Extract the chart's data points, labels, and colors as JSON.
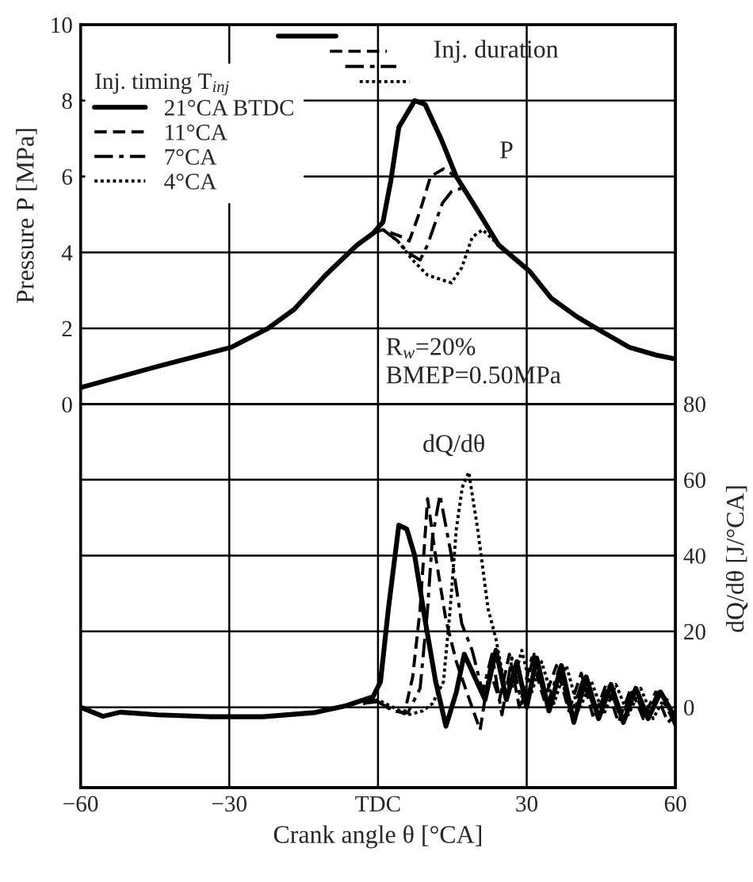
{
  "chart_data": {
    "type": "line",
    "xlabel": "Crank angle θ [°CA]",
    "ylabel": "Pressure P [MPa]",
    "y2label": "dQ/dθ [J/°CA]",
    "legend_title": "Inj. timing T$_{inj}$",
    "xlim": [
      -60,
      60
    ],
    "xticks": [
      {
        "value": -60,
        "label": "−60"
      },
      {
        "value": -30,
        "label": "−30"
      },
      {
        "value": 0,
        "label": "TDC"
      },
      30,
      60
    ],
    "ylim": [
      -10.1,
      10
    ],
    "yticks": [
      0,
      2,
      4,
      6,
      8,
      10
    ],
    "y2lim": [
      -21.2,
      180
    ],
    "y2ticks": [
      0,
      20,
      40,
      60,
      80
    ],
    "grid": true,
    "legend": "top left",
    "series": [
      {
        "name": "21°CA BTDC",
        "color": "#000000",
        "line_style": "solid",
        "x": [
          -59.7,
          -44.4,
          -29.6,
          -22.2,
          -16.9,
          -10.6,
          -4.2,
          -1.0,
          1.0,
          2.6,
          4.2,
          7.4,
          9.5,
          12.7,
          15.8,
          20.1,
          24.3,
          30.6,
          34.9,
          40.2,
          45.4,
          50.7,
          56.0,
          59.7
        ],
        "values": [
          0.45,
          1.0,
          1.5,
          2.0,
          2.5,
          3.4,
          4.2,
          4.5,
          4.8,
          5.9,
          7.3,
          8.0,
          7.9,
          7.0,
          6.0,
          5.1,
          4.2,
          3.5,
          2.8,
          2.3,
          1.9,
          1.5,
          1.3,
          1.2
        ]
      },
      {
        "name": "11°CA",
        "color": "#000000",
        "line_style": "dashed",
        "x": [
          -1.0,
          1.0,
          3.0,
          5.0,
          6.3,
          8.5,
          10.6,
          13.2,
          15.8
        ],
        "values": [
          4.5,
          4.6,
          4.5,
          4.4,
          4.3,
          5.1,
          6.0,
          6.2,
          6.0
        ]
      },
      {
        "name": "7°CA",
        "color": "#000000",
        "line_style": "dashdot",
        "x": [
          1.0,
          4.0,
          6.0,
          8.5,
          10.0,
          11.6,
          13.0,
          14.8,
          17.0
        ],
        "values": [
          4.6,
          4.3,
          4.0,
          3.8,
          4.2,
          4.8,
          5.3,
          5.6,
          5.7
        ]
      },
      {
        "name": "4°CA",
        "color": "#000000",
        "line_style": "dotted",
        "x": [
          1.0,
          4.0,
          7.0,
          10.0,
          14.8,
          16.9,
          19.0,
          21.1,
          24.3
        ],
        "values": [
          4.6,
          4.3,
          3.8,
          3.4,
          3.2,
          3.6,
          4.4,
          4.6,
          4.2
        ]
      },
      {
        "color": "#000000",
        "line_style": "solid",
        "x": [
          -20.1,
          -8.5
        ],
        "values": [
          9.7,
          9.7
        ]
      },
      {
        "color": "#000000",
        "line_style": "dashed",
        "x": [
          -9.7,
          1.8
        ],
        "values": [
          9.3,
          9.3
        ]
      },
      {
        "color": "#000000",
        "line_style": "dashdot",
        "x": [
          -6.6,
          3.7
        ],
        "values": [
          8.9,
          8.9
        ]
      },
      {
        "color": "#000000",
        "line_style": "dotted",
        "x": [
          -3.7,
          6.3
        ],
        "values": [
          8.5,
          8.5
        ]
      },
      {
        "axis": "y2",
        "color": "#000000",
        "line_style": "solid",
        "x": [
          -60,
          -55.5,
          -52,
          -44.4,
          -33.8,
          -23.2,
          -12.7,
          -6.4,
          -1,
          0.5,
          2.1,
          4.2,
          5.8,
          7.4,
          9.5,
          11.6,
          13.7,
          15.8,
          17.4,
          19.5,
          21.6,
          23.8,
          25.9,
          28,
          30,
          32,
          34.5,
          37,
          39.5,
          42,
          44.5,
          47,
          49.5,
          52,
          54.5,
          57,
          60
        ],
        "values": [
          0,
          -2.4,
          -1.3,
          -2,
          -2.5,
          -2.5,
          -1.4,
          0.4,
          2.8,
          6.7,
          26,
          48,
          47,
          40,
          23,
          7,
          -5,
          4,
          14,
          8,
          2,
          15,
          2,
          12,
          0,
          13,
          -1,
          11,
          -4,
          8,
          -3,
          6,
          -4,
          5,
          -3,
          4,
          -3
        ]
      },
      {
        "axis": "y2",
        "color": "#000000",
        "line_style": "dashed",
        "x": [
          -3,
          -1,
          2,
          5.3,
          7,
          8.5,
          10,
          11.6,
          13.7,
          15.8,
          17.9,
          20.6,
          22.5,
          24.5,
          26.5,
          28.5,
          31,
          33.5,
          36,
          38.5,
          41,
          43.5,
          46,
          48.5,
          51,
          53.5,
          56,
          58.5,
          60
        ],
        "values": [
          1,
          2,
          0,
          -1.7,
          8,
          26,
          55,
          40,
          23,
          12,
          4,
          -6,
          10,
          2,
          14,
          0,
          13,
          2,
          11,
          -1,
          9,
          -3,
          6,
          -4,
          5,
          -3,
          4,
          -4,
          -2
        ]
      },
      {
        "axis": "y2",
        "color": "#000000",
        "line_style": "dashdot",
        "x": [
          -3,
          0,
          3,
          6,
          8.5,
          10,
          11,
          12.5,
          14.8,
          16.9,
          19,
          21.1,
          23,
          25,
          27,
          29,
          31.5,
          34,
          36.5,
          39,
          41.5,
          44,
          46.5,
          49,
          51.5,
          54,
          56.5,
          59,
          60
        ],
        "values": [
          1,
          1.5,
          -1,
          -1.5,
          5,
          26,
          45,
          56,
          40,
          22,
          15,
          4,
          14,
          -2,
          13,
          1,
          14,
          0,
          10,
          -2,
          8,
          -2,
          6,
          -3,
          5,
          -3,
          4,
          -2,
          -5
        ]
      },
      {
        "axis": "y2",
        "color": "#000000",
        "line_style": "dotted",
        "x": [
          -3,
          0,
          3,
          6,
          9,
          11,
          13.2,
          14.5,
          15.8,
          17,
          18.3,
          20.1,
          22.2,
          23.8,
          25.4,
          27,
          29,
          31,
          33,
          35.5,
          38,
          40.5,
          43,
          45.5,
          48,
          50.5,
          53,
          55.5,
          58,
          60
        ],
        "values": [
          1,
          2,
          0,
          -2,
          -1,
          1,
          6.7,
          25,
          47,
          58,
          62,
          47,
          26,
          18,
          6.7,
          5,
          15,
          4,
          12,
          1,
          11,
          -1,
          7,
          -2,
          6,
          -2,
          5,
          -3,
          3,
          -4
        ]
      }
    ],
    "annotations": [
      "Inj. duration",
      "P",
      "dQ/dθ",
      "R$_{w}$=20%",
      "BMEP=0.50MPa"
    ]
  }
}
